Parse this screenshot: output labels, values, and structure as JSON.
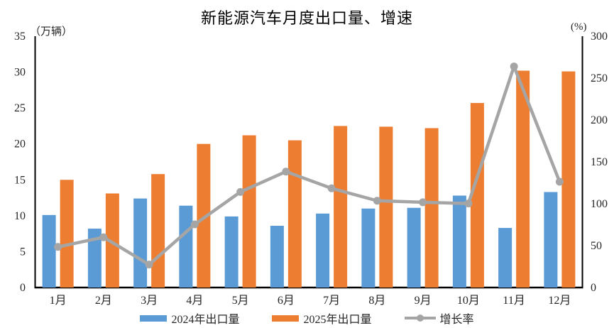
{
  "chart_data": {
    "type": "bar",
    "combo": "bar+line",
    "title": "新能源汽车月度出口量、增速",
    "categories": [
      "1月",
      "2月",
      "3月",
      "4月",
      "5月",
      "6月",
      "7月",
      "8月",
      "9月",
      "10月",
      "11月",
      "12月"
    ],
    "series": [
      {
        "name": "2024年出口量",
        "type": "bar",
        "axis": "left",
        "color": "#5B9BD5",
        "values": [
          10.1,
          8.2,
          12.4,
          11.4,
          9.9,
          8.6,
          10.3,
          11.0,
          11.1,
          12.8,
          8.3,
          13.3
        ]
      },
      {
        "name": "2025年出口量",
        "type": "bar",
        "axis": "left",
        "color": "#ED7D31",
        "values": [
          15.0,
          13.1,
          15.8,
          20.0,
          21.2,
          20.5,
          22.5,
          22.4,
          22.2,
          25.7,
          30.2,
          30.1
        ]
      },
      {
        "name": "增长率",
        "type": "line",
        "axis": "right",
        "color": "#A5A5A5",
        "values": [
          48.5,
          60.0,
          27.4,
          75.4,
          114.1,
          138.4,
          118.4,
          103.6,
          101.8,
          100.3,
          263.9,
          126.3
        ]
      }
    ],
    "left_axis": {
      "label": "（万辆）",
      "min": 0,
      "max": 35,
      "ticks": [
        0,
        5,
        10,
        15,
        20,
        25,
        30,
        35
      ]
    },
    "right_axis": {
      "label": "(%)",
      "min": 0,
      "max": 300,
      "ticks": [
        0,
        50,
        100,
        150,
        200,
        250,
        300
      ]
    },
    "legend_position": "bottom",
    "grid": false,
    "axis_color": "#000000",
    "tick_text_color": "#262626"
  }
}
